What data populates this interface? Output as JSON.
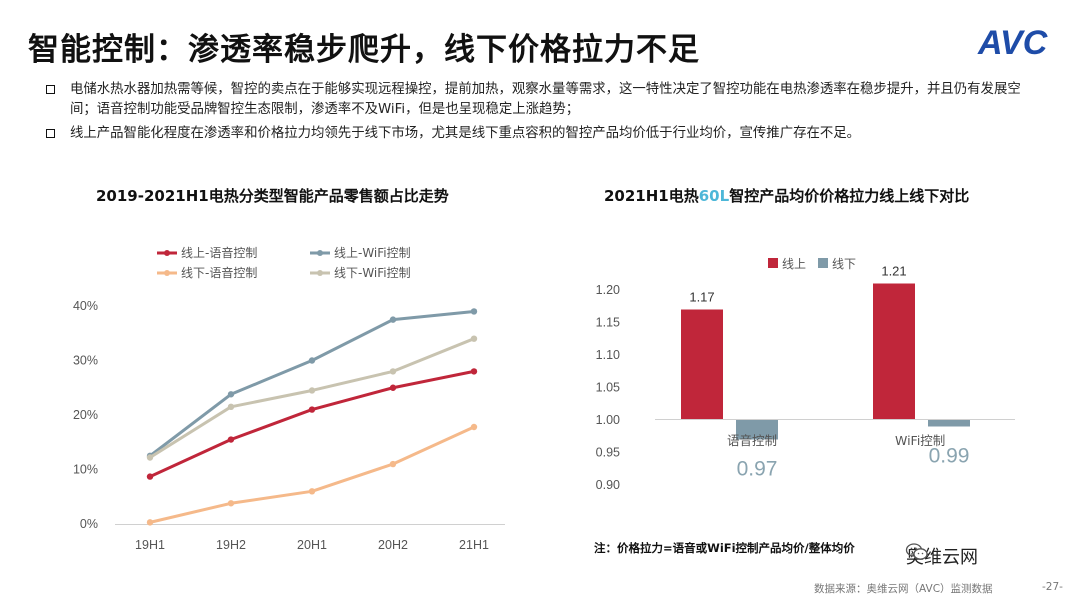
{
  "title": "智能控制：渗透率稳步爬升，线下价格拉力不足",
  "logo": {
    "text": "AVC",
    "color": "#1e4ca8"
  },
  "bullets": [
    "电储水热水器加热需等候，智控的卖点在于能够实现远程操控，提前加热，观察水量等需求，这一特性决定了智控功能在电热渗透率在稳步提升，并且仍有发展空间；语音控制功能受品牌智控生态限制，渗透率不及WiFi，但是也呈现稳定上涨趋势；",
    "线上产品智能化程度在渗透率和价格拉力均领先于线下市场，尤其是线下重点容积的智控产品均价低于行业均价，宣传推广存在不足。"
  ],
  "chart_data": [
    {
      "type": "line",
      "title": "2019-2021H1电热分类型智能产品零售额占比走势",
      "categories": [
        "19H1",
        "19H2",
        "20H1",
        "20H2",
        "21H1"
      ],
      "yticks": [
        "0%",
        "10%",
        "20%",
        "30%",
        "40%"
      ],
      "ylim": [
        0,
        40
      ],
      "series": [
        {
          "name": "线上-语音控制",
          "color": "#c0263a",
          "values": [
            8.7,
            15.5,
            21.0,
            25.0,
            28.0
          ]
        },
        {
          "name": "线上-WiFi控制",
          "color": "#7f9aa8",
          "values": [
            12.5,
            23.8,
            30.0,
            37.5,
            39.0
          ]
        },
        {
          "name": "线下-语音控制",
          "color": "#f5b98a",
          "values": [
            0.3,
            3.8,
            6.0,
            11.0,
            17.8
          ]
        },
        {
          "name": "线下-WiFi控制",
          "color": "#c8c3b0",
          "values": [
            12.2,
            21.5,
            24.5,
            28.0,
            34.0
          ]
        }
      ]
    },
    {
      "type": "bar",
      "title_prefix": "2021H1电热",
      "title_accent": "60L",
      "title_suffix": "智控产品均价价格拉力线上线下对比",
      "categories": [
        "语音控制",
        "WiFi控制"
      ],
      "yticks": [
        "0.90",
        "0.95",
        "1.00",
        "1.05",
        "1.10",
        "1.15",
        "1.20"
      ],
      "ylim": [
        0.9,
        1.2
      ],
      "baseline": 1.0,
      "series": [
        {
          "name": "线上",
          "color": "#c0263a",
          "values": [
            1.17,
            1.21
          ],
          "labels": [
            "1.17",
            "1.21"
          ]
        },
        {
          "name": "线下",
          "color": "#7f9aa8",
          "values": [
            0.97,
            0.99
          ],
          "labels": [
            "0.97",
            "0.99"
          ]
        }
      ]
    }
  ],
  "note": "注：价格拉力=语音或WiFi控制产品均价/整体均价",
  "watermark": "奥维云网",
  "source": "数据来源：奥维云网（AVC）监测数据",
  "page_number": "-27-"
}
